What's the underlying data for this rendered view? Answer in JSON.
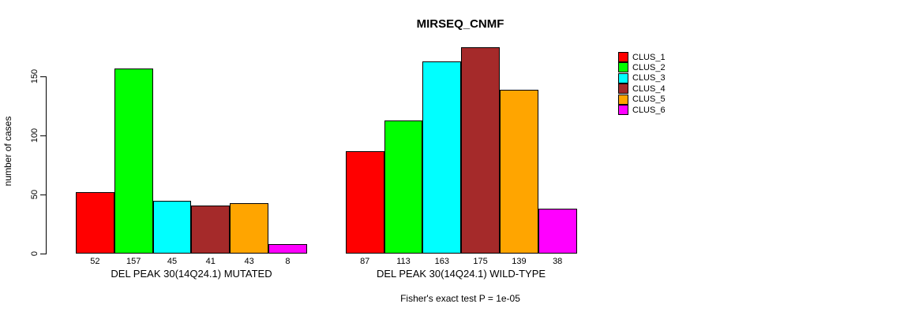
{
  "chart_data": {
    "type": "bar",
    "title": "MIRSEQ_CNMF",
    "ylabel": "number of cases",
    "yticks": [
      0,
      50,
      100,
      150
    ],
    "ylim": [
      0,
      175
    ],
    "grid": false,
    "legend_position": "right-outside",
    "categories": [
      "CLUS_1",
      "CLUS_2",
      "CLUS_3",
      "CLUS_4",
      "CLUS_5",
      "CLUS_6"
    ],
    "series": [
      {
        "name": "CLUS_1",
        "color": "#FF0000"
      },
      {
        "name": "CLUS_2",
        "color": "#00FF00"
      },
      {
        "name": "CLUS_3",
        "color": "#00FFFF"
      },
      {
        "name": "CLUS_4",
        "color": "#A52A2A"
      },
      {
        "name": "CLUS_5",
        "color": "#FFA500"
      },
      {
        "name": "CLUS_6",
        "color": "#FF00FF"
      }
    ],
    "groups": [
      {
        "label": "DEL PEAK 30(14Q24.1) MUTATED",
        "values": [
          52,
          157,
          45,
          41,
          43,
          8
        ]
      },
      {
        "label": "DEL PEAK 30(14Q24.1) WILD-TYPE",
        "values": [
          87,
          113,
          163,
          175,
          139,
          38
        ]
      }
    ],
    "annotation": "Fisher's exact test P = 1e-05"
  }
}
